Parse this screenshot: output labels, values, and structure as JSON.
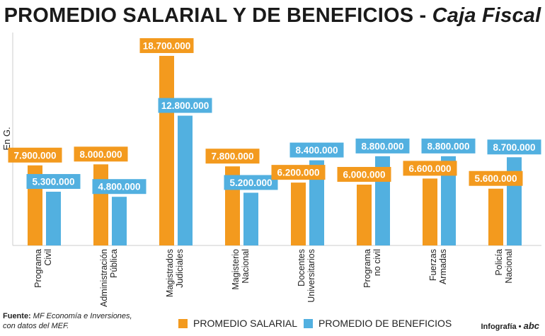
{
  "title": {
    "main": "PROMEDIO SALARIAL Y DE BENEFICIOS - ",
    "subtitle": "Caja Fiscal"
  },
  "colors": {
    "salary": "#f39a1e",
    "benefits": "#52b0e0",
    "label_text": "#ffffff",
    "text": "#222222"
  },
  "chart_data": {
    "type": "bar",
    "title": "PROMEDIO SALARIAL Y DE BENEFICIOS - Caja Fiscal",
    "ylabel": "En G.",
    "xlabel": "",
    "ylim": [
      0,
      21000000
    ],
    "categories": [
      [
        "Programa",
        "Civil"
      ],
      [
        "Administración",
        "Pública"
      ],
      [
        "Magistrados",
        "Judiciales"
      ],
      [
        "Magisterio",
        "Nacional"
      ],
      [
        "Docentes",
        "Universitarios"
      ],
      [
        "Programa",
        "no civil"
      ],
      [
        "Fuerzas",
        "Armadas"
      ],
      [
        "Policía",
        "Nacional"
      ]
    ],
    "series": [
      {
        "name": "PROMEDIO SALARIAL",
        "values": [
          7900000,
          8000000,
          18700000,
          7800000,
          6200000,
          6000000,
          6600000,
          5600000
        ],
        "labels": [
          "7.900.000",
          "8.000.000",
          "18.700.000",
          "7.800.000",
          "6.200.000",
          "6.000.000",
          "6.600.000",
          "5.600.000"
        ]
      },
      {
        "name": "PROMEDIO DE BENEFICIOS",
        "values": [
          5300000,
          4800000,
          12800000,
          5200000,
          8400000,
          8800000,
          8800000,
          8700000
        ],
        "labels": [
          "5.300.000",
          "4.800.000",
          "12.800.000",
          "5.200.000",
          "8.400.000",
          "8.800.000",
          "8.800.000",
          "8.700.000"
        ]
      }
    ]
  },
  "footer": {
    "source_label": "Fuente:",
    "source_line1": "MF Economía e Inversiones,",
    "source_line2": "con datos del MEF."
  },
  "legend": {
    "salary": "PROMEDIO SALARIAL",
    "benefits": "PROMEDIO DE BENEFICIOS"
  },
  "credit": {
    "label": "Infografía •",
    "brand": "abc"
  }
}
